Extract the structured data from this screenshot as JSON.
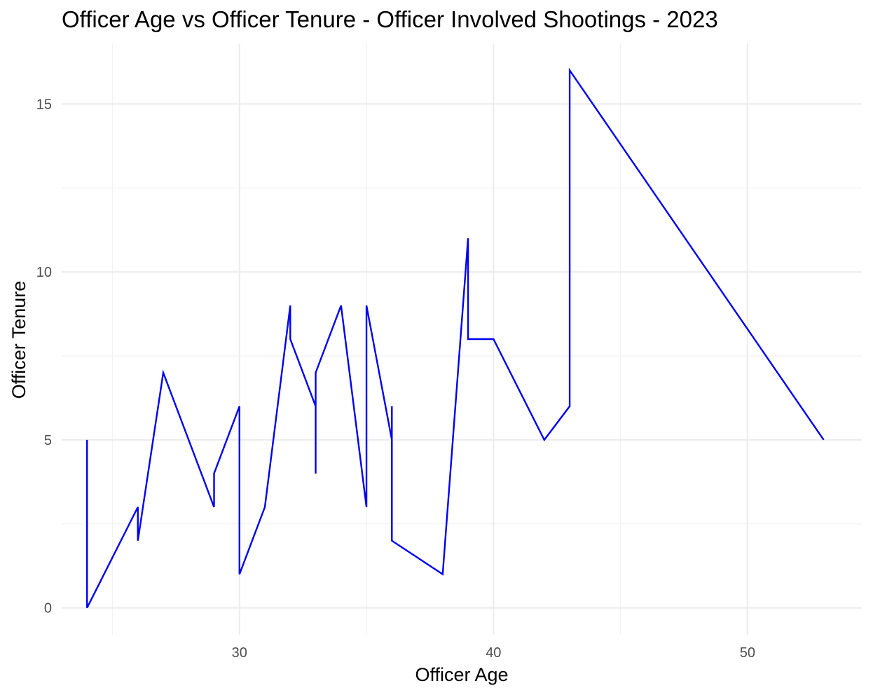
{
  "chart_data": {
    "type": "line",
    "title": "Officer Age vs Officer Tenure - Officer Involved Shootings - 2023",
    "xlabel": "Officer Age",
    "ylabel": "Officer Tenure",
    "xlim": [
      23,
      54.5
    ],
    "ylim": [
      -0.8,
      16.8
    ],
    "x_ticks": [
      30,
      40,
      50
    ],
    "x_tick_labels": [
      "30",
      "40",
      "50"
    ],
    "x_minor_ticks": [
      25,
      35,
      45
    ],
    "y_ticks": [
      0,
      5,
      10,
      15
    ],
    "y_tick_labels": [
      "0",
      "5",
      "10",
      "15"
    ],
    "y_minor_ticks": [
      2.5,
      7.5,
      12.5
    ],
    "grid": true,
    "legend": "none",
    "series": [
      {
        "color": "#0000ee",
        "x": [
          24,
          24,
          26,
          26,
          27,
          29,
          29,
          30,
          30,
          31,
          32,
          32,
          33,
          33,
          33,
          34,
          35,
          35,
          36,
          36,
          36,
          38,
          39,
          39,
          40,
          42,
          43,
          43,
          53
        ],
        "y": [
          5,
          0,
          3,
          2,
          7,
          3,
          4,
          6,
          1,
          3,
          9,
          8,
          6,
          4,
          7,
          9,
          3,
          9,
          5,
          6,
          2,
          1,
          11,
          8,
          8,
          5,
          6,
          16,
          5
        ]
      }
    ]
  }
}
